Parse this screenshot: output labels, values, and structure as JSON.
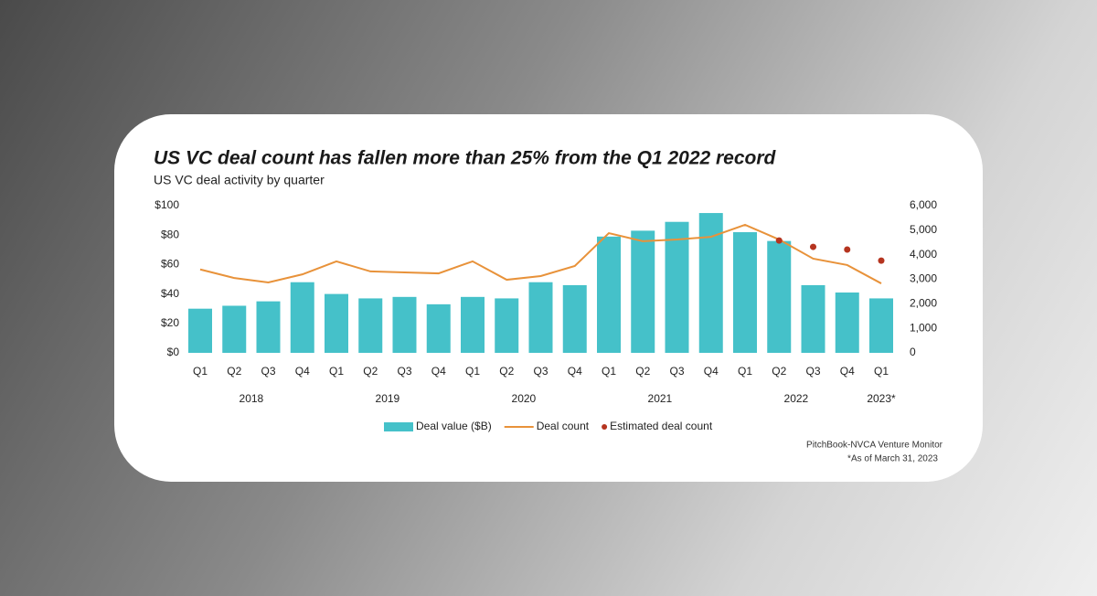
{
  "chart_data": {
    "type": "bar",
    "title": "US VC deal count has fallen more than 25% from the Q1 2022 record",
    "subtitle": "US VC deal activity by quarter",
    "groups": [
      {
        "label": "2018",
        "quarters": [
          "Q1",
          "Q2",
          "Q3",
          "Q4"
        ]
      },
      {
        "label": "2019",
        "quarters": [
          "Q1",
          "Q2",
          "Q3",
          "Q4"
        ]
      },
      {
        "label": "2020",
        "quarters": [
          "Q1",
          "Q2",
          "Q3",
          "Q4"
        ]
      },
      {
        "label": "2021",
        "quarters": [
          "Q1",
          "Q2",
          "Q3",
          "Q4"
        ]
      },
      {
        "label": "2022",
        "quarters": [
          "Q1",
          "Q2",
          "Q3",
          "Q4"
        ]
      },
      {
        "label": "2023*",
        "quarters": [
          "Q1"
        ]
      }
    ],
    "series": [
      {
        "name": "Deal value ($B)",
        "type": "bar",
        "color": "#45c1c9",
        "axis": "y",
        "values": [
          30,
          32,
          35,
          48,
          40,
          37,
          38,
          33,
          38,
          37,
          48,
          46,
          79,
          83,
          89,
          95,
          82,
          76,
          46,
          41,
          37
        ]
      },
      {
        "name": "Deal count",
        "type": "line",
        "color": "#e8923a",
        "axis": "y2",
        "values": [
          3400,
          3050,
          2870,
          3200,
          3730,
          3320,
          3280,
          3240,
          3730,
          2980,
          3130,
          3540,
          4880,
          4550,
          4620,
          4730,
          5220,
          4620,
          3840,
          3580,
          2830
        ]
      },
      {
        "name": "Estimated deal count",
        "type": "scatter",
        "color": "#b5341f",
        "axis": "y2",
        "values": [
          null,
          null,
          null,
          null,
          null,
          null,
          null,
          null,
          null,
          null,
          null,
          null,
          null,
          null,
          null,
          null,
          null,
          4580,
          4320,
          4210,
          3760
        ]
      }
    ],
    "ylim": [
      0,
      100
    ],
    "yticks": [
      {
        "value": 0,
        "label": "$0"
      },
      {
        "value": 20,
        "label": "$20"
      },
      {
        "value": 40,
        "label": "$40"
      },
      {
        "value": 60,
        "label": "$60"
      },
      {
        "value": 80,
        "label": "$80"
      },
      {
        "value": 100,
        "label": "$100"
      }
    ],
    "y2lim": [
      0,
      6000
    ],
    "y2ticks": [
      0,
      {
        "value": 1000,
        "label": "1,000"
      },
      {
        "value": 2000,
        "label": "2,000"
      },
      {
        "value": 3000,
        "label": "3,000"
      },
      {
        "value": 4000,
        "label": "4,000"
      },
      {
        "value": 5000,
        "label": "5,000"
      },
      {
        "value": 6000,
        "label": "6,000"
      }
    ],
    "legend": "bottom",
    "source": "PitchBook-NVCA Venture Monitor",
    "note": "*As of March 31, 2023"
  }
}
